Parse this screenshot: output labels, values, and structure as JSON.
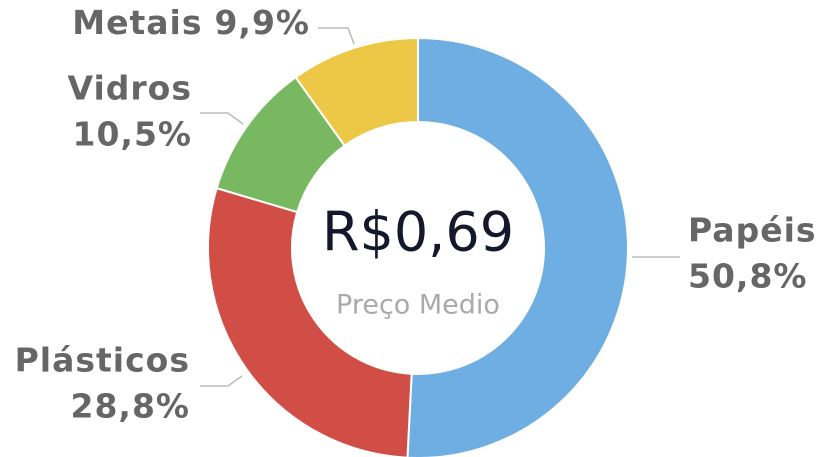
{
  "chart_data": {
    "type": "donut",
    "categories": [
      "Papéis",
      "Plásticos",
      "Vidros",
      "Metais"
    ],
    "values": [
      50.8,
      28.8,
      10.5,
      9.9
    ],
    "value_labels": [
      "50,8%",
      "28,8%",
      "10,5%",
      "9,9%"
    ],
    "colors": [
      "#6FAEE3",
      "#D04E45",
      "#77B860",
      "#EDC847"
    ],
    "center_value": "R$0,69",
    "center_label": "Preço Medio"
  }
}
